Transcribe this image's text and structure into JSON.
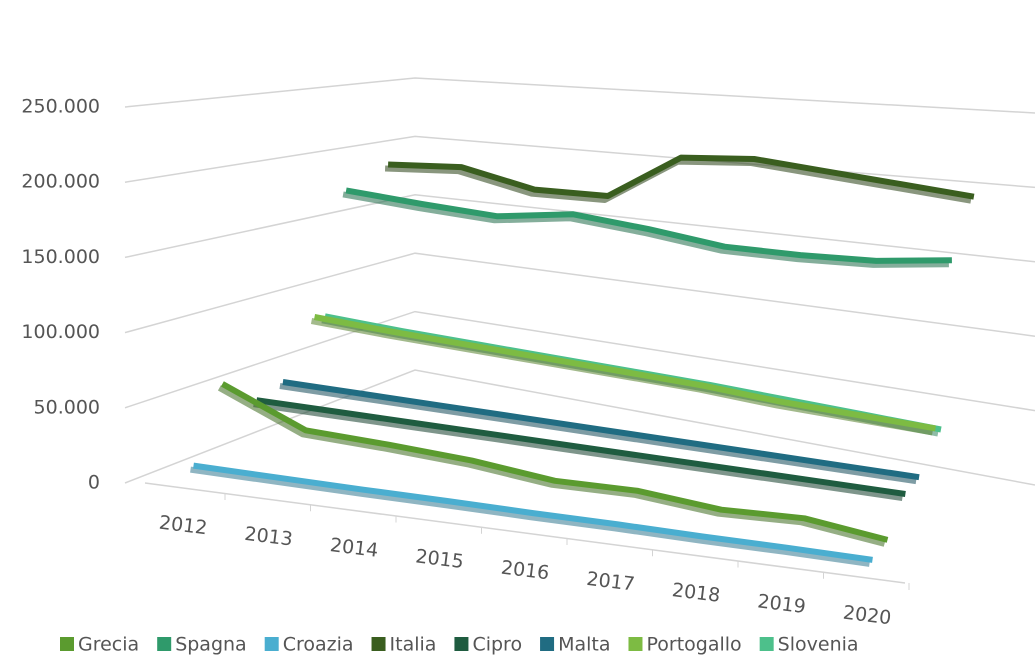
{
  "chart_data": {
    "type": "line3d",
    "categories": [
      "2012",
      "2013",
      "2014",
      "2015",
      "2016",
      "2017",
      "2018",
      "2019",
      "2020"
    ],
    "ylim": [
      0,
      250000
    ],
    "yticks": [
      {
        "value": 0,
        "label": "0"
      },
      {
        "value": 50000,
        "label": "50.000"
      },
      {
        "value": 100000,
        "label": "100.000"
      },
      {
        "value": 150000,
        "label": "150.000"
      },
      {
        "value": 200000,
        "label": "200.000"
      },
      {
        "value": 250000,
        "label": "250.000"
      }
    ],
    "grid": true,
    "legend": "bottom",
    "series": [
      {
        "name": "Grecia",
        "color": "#5b9b2f",
        "values": [
          60000,
          36000,
          34000,
          31000,
          25000,
          26000,
          21000,
          23000,
          16000
        ]
      },
      {
        "name": "Spagna",
        "color": "#2f9a6b",
        "values": [
          176000,
          175000,
          175000,
          186000,
          184000,
          180000,
          183000,
          188000,
          198000
        ]
      },
      {
        "name": "Croazia",
        "color": "#4aaed0",
        "values": [
          12000,
          11500,
          11000,
          11000,
          10500,
          10500,
          10000,
          10000,
          9500
        ]
      },
      {
        "name": "Italia",
        "color": "#3a5e1f",
        "values": [
          190000,
          198000,
          190000,
          195000,
          236000,
          245000,
          245000,
          245000,
          245000
        ]
      },
      {
        "name": "Cipro",
        "color": "#1f5c40",
        "values": [
          40000,
          40000,
          40000,
          40000,
          40000,
          40000,
          40000,
          40000,
          40000
        ]
      },
      {
        "name": "Malta",
        "color": "#206c82",
        "values": [
          46000,
          46000,
          46000,
          46000,
          46000,
          46000,
          46000,
          46000,
          46000
        ]
      },
      {
        "name": "Portogallo",
        "color": "#7dbb43",
        "values": [
          86000,
          84000,
          83000,
          82000,
          81000,
          80000,
          77000,
          76000,
          75000
        ]
      },
      {
        "name": "Slovenia",
        "color": "#4dc08b",
        "values": [
          84000,
          82000,
          81000,
          80000,
          79000,
          78000,
          76000,
          74000,
          72000
        ]
      }
    ]
  }
}
